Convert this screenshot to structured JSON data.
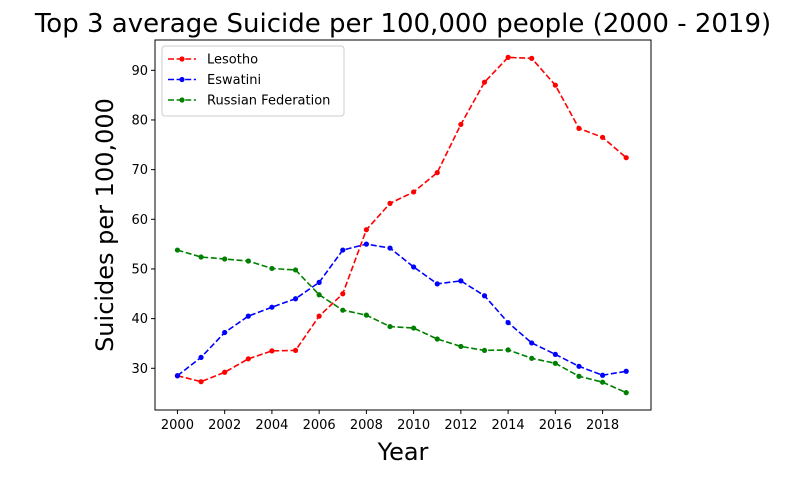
{
  "chart_data": {
    "type": "line",
    "title": "Top 3 average Suicide per 100,000 people (2000 - 2019)",
    "xlabel": "Year",
    "ylabel": "Suicides per 100,000",
    "x": [
      2000,
      2001,
      2002,
      2003,
      2004,
      2005,
      2006,
      2007,
      2008,
      2009,
      2010,
      2011,
      2012,
      2013,
      2014,
      2015,
      2016,
      2017,
      2018,
      2019
    ],
    "xticks": [
      2000,
      2002,
      2004,
      2006,
      2008,
      2010,
      2012,
      2014,
      2016,
      2018
    ],
    "yticks": [
      30,
      40,
      50,
      60,
      70,
      80,
      90
    ],
    "xlim": [
      1999.05,
      2020.05
    ],
    "ylim": [
      21.6,
      96.1
    ],
    "grid": false,
    "legend_position": "top-left",
    "series": [
      {
        "name": "Lesotho",
        "color": "#ff0000",
        "values": [
          28.5,
          27.3,
          29.2,
          31.9,
          33.5,
          33.6,
          40.5,
          45.0,
          57.9,
          63.2,
          65.5,
          69.4,
          79.1,
          87.6,
          92.6,
          92.4,
          87.0,
          78.3,
          76.5,
          72.4
        ]
      },
      {
        "name": "Eswatini",
        "color": "#0000ff",
        "values": [
          28.5,
          32.2,
          37.2,
          40.5,
          42.3,
          44.0,
          47.3,
          53.8,
          55.0,
          54.2,
          50.4,
          47.0,
          47.6,
          44.6,
          39.2,
          35.1,
          32.8,
          30.4,
          28.6,
          29.4
        ]
      },
      {
        "name": "Russian Federation",
        "color": "#008000",
        "values": [
          53.8,
          52.4,
          52.0,
          51.6,
          50.1,
          49.8,
          44.8,
          41.7,
          40.7,
          38.4,
          38.1,
          35.9,
          34.4,
          33.6,
          33.7,
          32.0,
          31.0,
          28.4,
          27.2,
          25.1
        ]
      }
    ]
  }
}
